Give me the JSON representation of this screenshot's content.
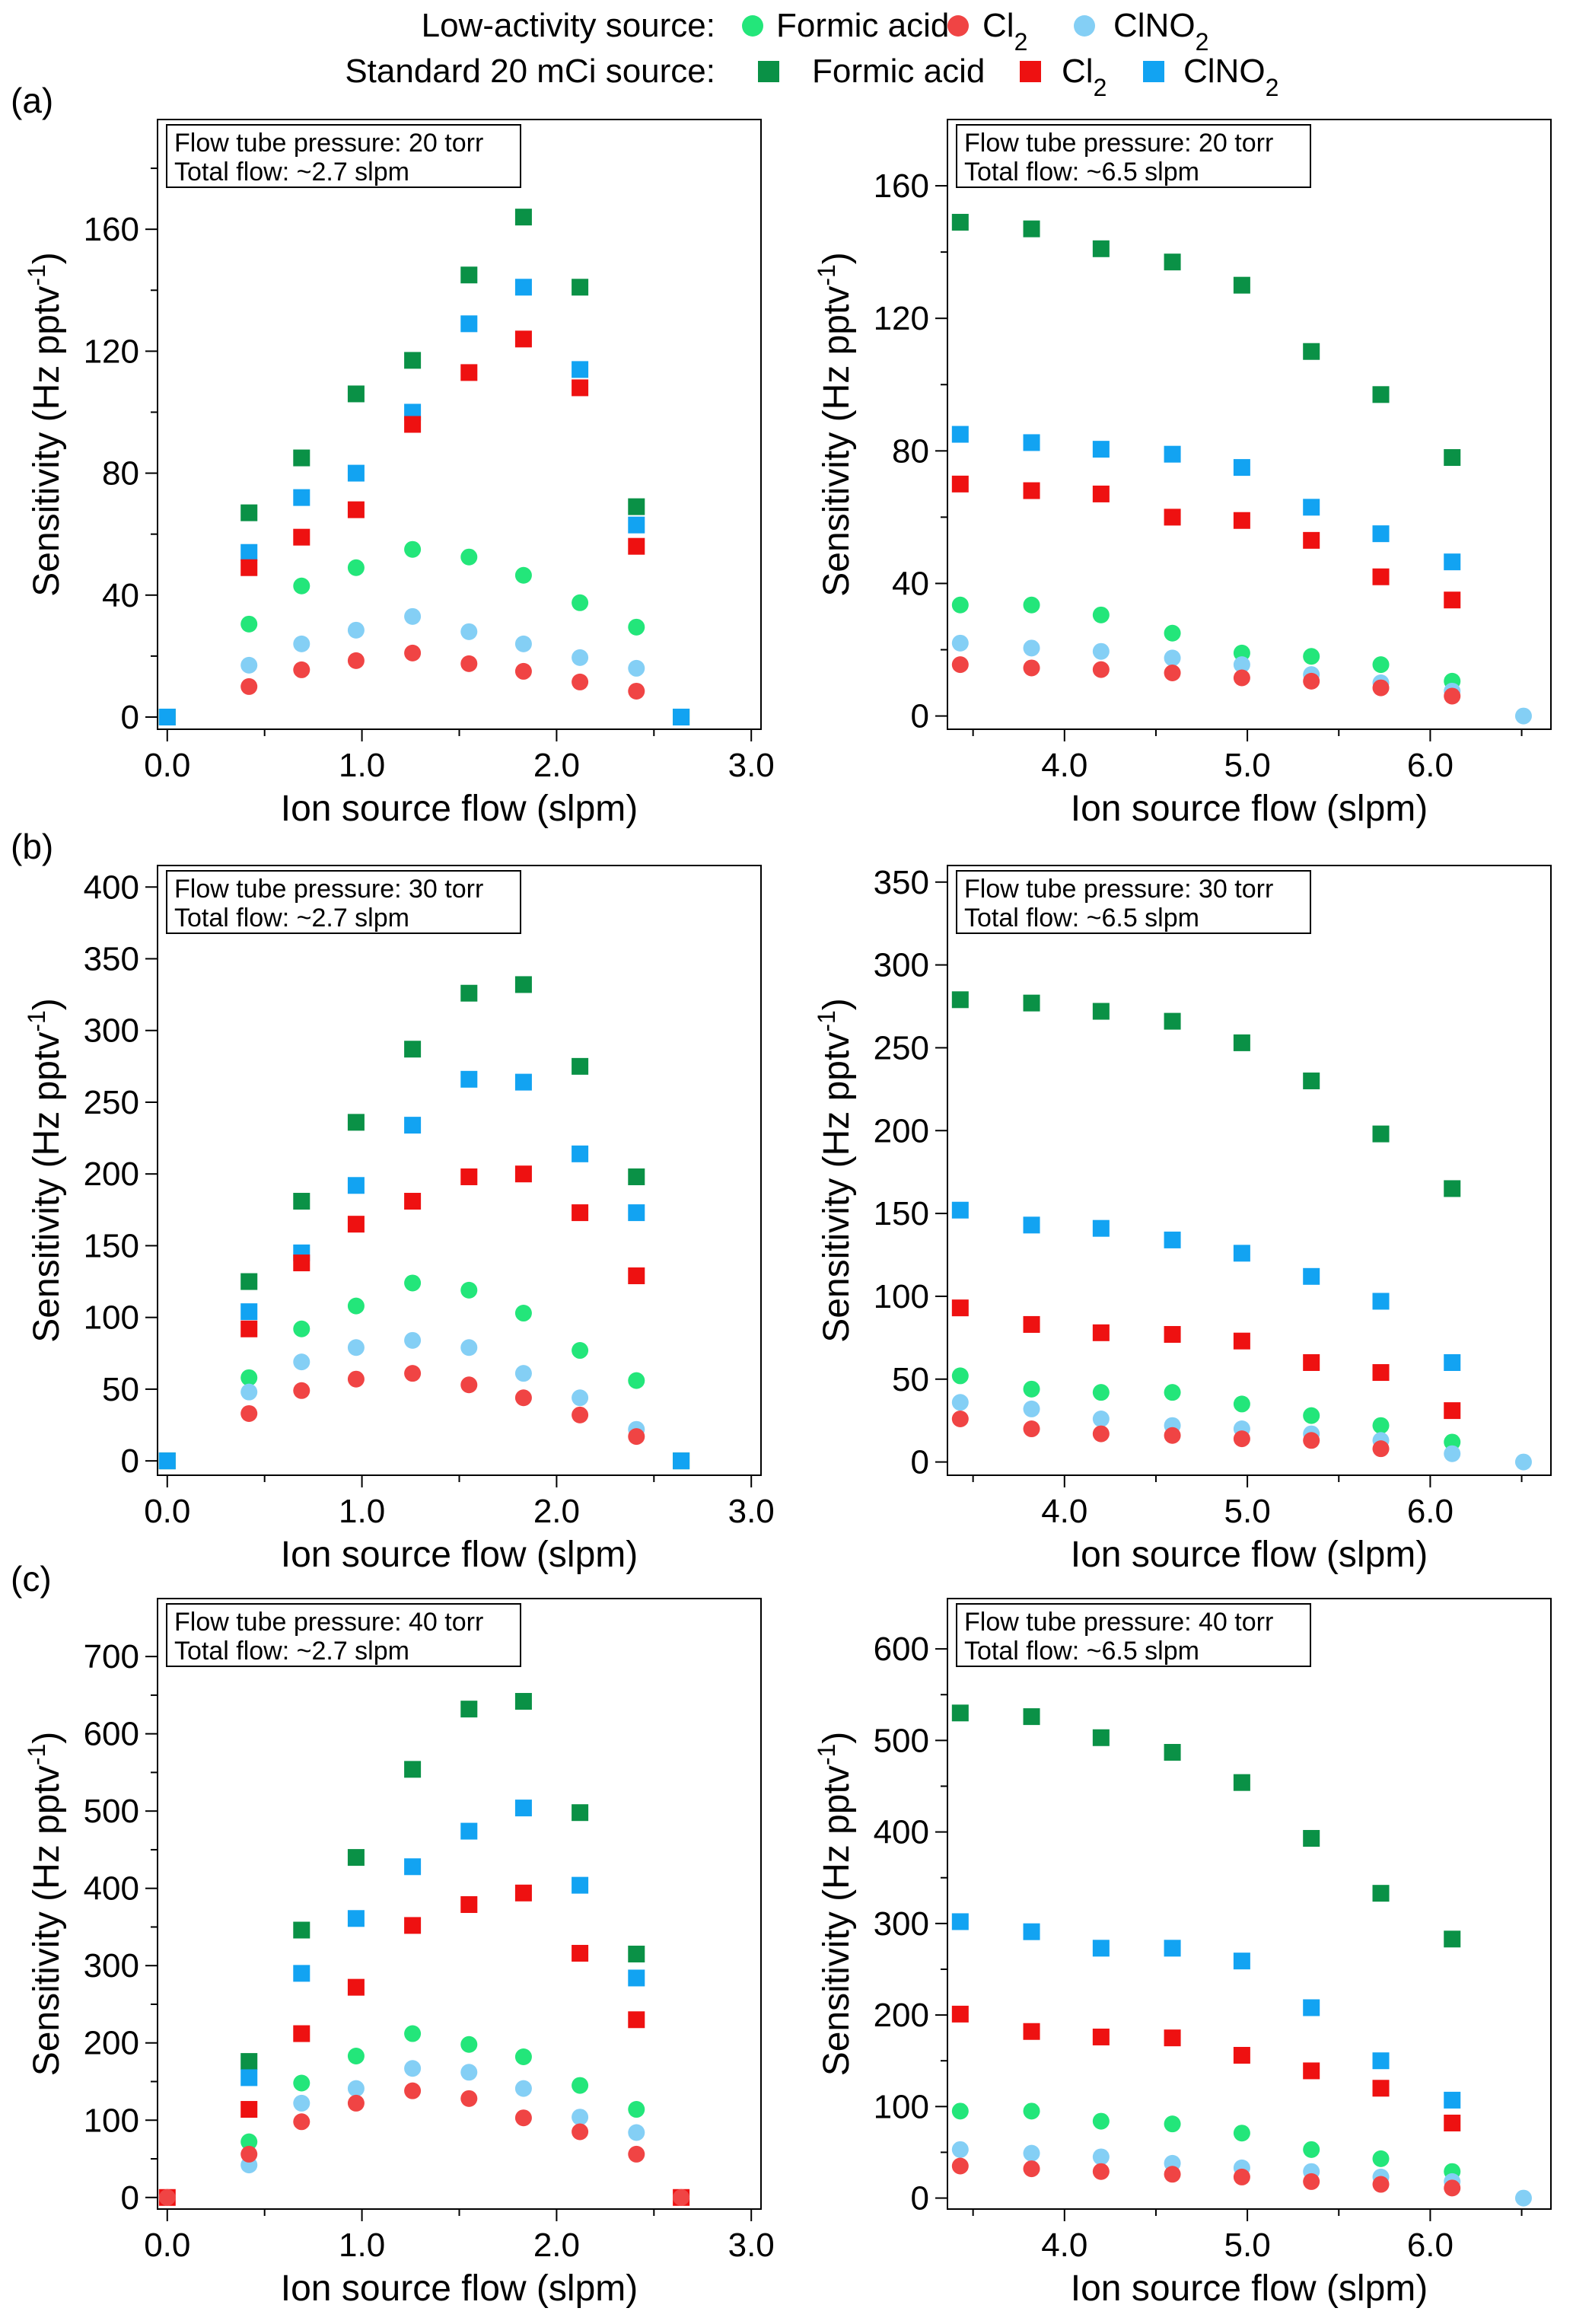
{
  "legend": {
    "low_activity_label": "Low-activity source:",
    "standard_label": "Standard 20 mCi source:",
    "entries": [
      {
        "source": "low",
        "species": "Formic acid",
        "color": "#23e67a",
        "marker": "circle"
      },
      {
        "source": "low",
        "species": "Cl2",
        "color": "#f04444",
        "marker": "circle"
      },
      {
        "source": "low",
        "species": "ClNO2",
        "color": "#84cff5",
        "marker": "circle"
      },
      {
        "source": "std",
        "species": "Formic acid",
        "color": "#0a9146",
        "marker": "square"
      },
      {
        "source": "std",
        "species": "Cl2",
        "color": "#ee1111",
        "marker": "square"
      },
      {
        "source": "std",
        "species": "ClNO2",
        "color": "#12a3f2",
        "marker": "square"
      }
    ]
  },
  "panel_labels": [
    "(a)",
    "(b)",
    "(c)"
  ],
  "chart_data": [
    {
      "type": "scatter",
      "row": "(a)",
      "side": "left",
      "info": [
        "Flow tube pressure:  20 torr",
        "Total flow: ~2.7 slpm"
      ],
      "xlabel": "Ion source flow (slpm)",
      "ylabel": "Sensitivity (Hz pptv-1)",
      "xlim": [
        -0.05,
        3.05
      ],
      "ylim": [
        -4,
        196
      ],
      "xticks": [
        0,
        1,
        2,
        3
      ],
      "xtick_labels": [
        "0.0",
        "1.0",
        "2.0",
        "3.0"
      ],
      "xminor": [
        0.5,
        1.5,
        2.5
      ],
      "yticks": [
        0,
        40,
        80,
        120,
        160
      ],
      "yminor": [
        20,
        60,
        100,
        140,
        180
      ],
      "x": [
        0.0,
        0.42,
        0.69,
        0.97,
        1.26,
        1.55,
        1.83,
        2.12,
        2.41,
        2.64
      ],
      "series": [
        {
          "name": "Low-activity Formic acid",
          "values": [
            null,
            30.5,
            43,
            49,
            55,
            52.5,
            46.5,
            37.5,
            29.5,
            null
          ]
        },
        {
          "name": "Low-activity Cl2",
          "values": [
            null,
            10,
            15.5,
            18.5,
            21,
            17.5,
            15,
            11.5,
            8.5,
            null
          ]
        },
        {
          "name": "Low-activity ClNO2",
          "values": [
            null,
            17,
            24,
            28.5,
            33,
            28,
            24,
            19.5,
            16,
            null
          ]
        },
        {
          "name": "Standard Formic acid",
          "values": [
            0,
            67,
            85,
            106,
            117,
            145,
            164,
            141,
            69,
            0
          ]
        },
        {
          "name": "Standard Cl2",
          "values": [
            null,
            49,
            59,
            68,
            96,
            113,
            124,
            108,
            56,
            null
          ]
        },
        {
          "name": "Standard ClNO2",
          "values": [
            0,
            54,
            72,
            80,
            100,
            129,
            141,
            114,
            63,
            0
          ]
        }
      ]
    },
    {
      "type": "scatter",
      "row": "(a)",
      "side": "right",
      "info": [
        "Flow tube pressure:  20 torr",
        "Total flow: ~6.5 slpm"
      ],
      "xlabel": "Ion source flow (slpm)",
      "ylabel": "Sensitivity (Hz pptv-1)",
      "xlim": [
        3.36,
        6.66
      ],
      "ylim": [
        -4,
        180
      ],
      "xticks": [
        4,
        5,
        6
      ],
      "xtick_labels": [
        "4.0",
        "5.0",
        "6.0"
      ],
      "xminor": [
        3.5,
        4.5,
        5.5,
        6.5
      ],
      "yticks": [
        0,
        40,
        80,
        120,
        160
      ],
      "yminor": [
        20,
        60,
        100,
        140
      ],
      "x": [
        3.43,
        3.82,
        4.2,
        4.59,
        4.97,
        5.35,
        5.73,
        6.12,
        6.51
      ],
      "series": [
        {
          "name": "Low-activity Formic acid",
          "values": [
            33.5,
            33.5,
            30.5,
            25,
            19,
            18,
            15.5,
            10.5,
            null
          ]
        },
        {
          "name": "Low-activity Cl2",
          "values": [
            15.5,
            14.5,
            14,
            13,
            11.5,
            10.5,
            8.5,
            6,
            null
          ]
        },
        {
          "name": "Low-activity ClNO2",
          "values": [
            22,
            20.5,
            19.5,
            17.5,
            15.5,
            12.5,
            10,
            7.5,
            0
          ]
        },
        {
          "name": "Standard Formic acid",
          "values": [
            149,
            147,
            141,
            137,
            130,
            110,
            97,
            78,
            null
          ]
        },
        {
          "name": "Standard Cl2",
          "values": [
            70,
            68,
            67,
            60,
            59,
            53,
            42,
            35,
            null
          ]
        },
        {
          "name": "Standard ClNO2",
          "values": [
            85,
            82.5,
            80.5,
            79,
            75,
            63,
            55,
            46.5,
            null
          ]
        }
      ]
    },
    {
      "type": "scatter",
      "row": "(b)",
      "side": "left",
      "info": [
        "Flow tube pressure: 30 torr",
        "Total flow: ~2.7 slpm"
      ],
      "xlabel": "Ion source flow (slpm)",
      "ylabel": "Sensitivity (Hz pptv-1)",
      "xlim": [
        -0.05,
        3.05
      ],
      "ylim": [
        -10,
        415
      ],
      "xticks": [
        0,
        1,
        2,
        3
      ],
      "xtick_labels": [
        "0.0",
        "1.0",
        "2.0",
        "3.0"
      ],
      "xminor": [
        0.5,
        1.5,
        2.5
      ],
      "yticks": [
        0,
        50,
        100,
        150,
        200,
        250,
        300,
        350,
        400
      ],
      "yminor": [],
      "x": [
        0.0,
        0.42,
        0.69,
        0.97,
        1.26,
        1.55,
        1.83,
        2.12,
        2.41,
        2.64
      ],
      "series": [
        {
          "name": "Low-activity Formic acid",
          "values": [
            null,
            58,
            92,
            108,
            124,
            119,
            103,
            77,
            56,
            null
          ]
        },
        {
          "name": "Low-activity Cl2",
          "values": [
            null,
            33,
            49,
            57,
            61,
            53,
            44,
            32,
            17,
            null
          ]
        },
        {
          "name": "Low-activity ClNO2",
          "values": [
            null,
            48,
            69,
            79,
            84,
            79,
            61,
            44,
            22,
            null
          ]
        },
        {
          "name": "Standard Formic acid",
          "values": [
            0,
            125,
            181,
            236,
            287,
            326,
            332,
            275,
            198,
            0
          ]
        },
        {
          "name": "Standard Cl2",
          "values": [
            null,
            92,
            138,
            165,
            181,
            198,
            200,
            173,
            129,
            null
          ]
        },
        {
          "name": "Standard ClNO2",
          "values": [
            0,
            104,
            145,
            192,
            234,
            266,
            264,
            214,
            173,
            0
          ]
        }
      ]
    },
    {
      "type": "scatter",
      "row": "(b)",
      "side": "right",
      "info": [
        "Flow tube pressure: 30 torr",
        "Total flow: ~6.5 slpm"
      ],
      "xlabel": "Ion source flow (slpm)",
      "ylabel": "Sensitivity (Hz pptv-1)",
      "xlim": [
        3.36,
        6.66
      ],
      "ylim": [
        -8,
        360
      ],
      "xticks": [
        4,
        5,
        6
      ],
      "xtick_labels": [
        "4.0",
        "5.0",
        "6.0"
      ],
      "xminor": [
        3.5,
        4.5,
        5.5,
        6.5
      ],
      "yticks": [
        0,
        50,
        100,
        150,
        200,
        250,
        300,
        350
      ],
      "yminor": [],
      "x": [
        3.43,
        3.82,
        4.2,
        4.59,
        4.97,
        5.35,
        5.73,
        6.12,
        6.51
      ],
      "series": [
        {
          "name": "Low-activity Formic acid",
          "values": [
            52,
            44,
            42,
            42,
            35,
            28,
            22,
            12,
            null
          ]
        },
        {
          "name": "Low-activity Cl2",
          "values": [
            26,
            20,
            17,
            16,
            14,
            13,
            8,
            null,
            null
          ]
        },
        {
          "name": "Low-activity ClNO2",
          "values": [
            36,
            32,
            26,
            22,
            20,
            17,
            13,
            5,
            0
          ]
        },
        {
          "name": "Standard Formic acid",
          "values": [
            279,
            277,
            272,
            266,
            253,
            230,
            198,
            165,
            null
          ]
        },
        {
          "name": "Standard Cl2",
          "values": [
            93,
            83,
            78,
            77,
            73,
            60,
            54,
            31,
            null
          ]
        },
        {
          "name": "Standard ClNO2",
          "values": [
            152,
            143,
            141,
            134,
            126,
            112,
            97,
            60,
            null
          ]
        }
      ]
    },
    {
      "type": "scatter",
      "row": "(c)",
      "side": "left",
      "info": [
        "Flow tube pressure:  40 torr",
        "Total flow: ~2.7 slpm"
      ],
      "xlabel": "Ion source flow (slpm)",
      "ylabel": "Sensitivity (Hz pptv-1)",
      "xlim": [
        -0.05,
        3.05
      ],
      "ylim": [
        -15,
        775
      ],
      "xticks": [
        0,
        1,
        2,
        3
      ],
      "xtick_labels": [
        "0.0",
        "1.0",
        "2.0",
        "3.0"
      ],
      "xminor": [
        0.5,
        1.5,
        2.5
      ],
      "yticks": [
        0,
        100,
        200,
        300,
        400,
        500,
        600,
        700
      ],
      "yminor": [
        50,
        150,
        250,
        350,
        450,
        550,
        650
      ],
      "x": [
        0.0,
        0.42,
        0.69,
        0.97,
        1.26,
        1.55,
        1.83,
        2.12,
        2.41,
        2.64
      ],
      "series": [
        {
          "name": "Low-activity Formic acid",
          "values": [
            null,
            72,
            148,
            183,
            212,
            198,
            182,
            145,
            114,
            null
          ]
        },
        {
          "name": "Low-activity Cl2",
          "values": [
            0,
            56,
            98,
            122,
            138,
            128,
            103,
            85,
            56,
            0
          ]
        },
        {
          "name": "Low-activity ClNO2",
          "values": [
            null,
            42,
            122,
            141,
            167,
            162,
            141,
            104,
            84,
            null
          ]
        },
        {
          "name": "Standard Formic acid",
          "values": [
            null,
            176,
            346,
            440,
            554,
            632,
            642,
            498,
            315,
            null
          ]
        },
        {
          "name": "Standard Cl2",
          "values": [
            0,
            114,
            212,
            272,
            352,
            379,
            394,
            316,
            230,
            0
          ]
        },
        {
          "name": "Standard ClNO2",
          "values": [
            null,
            155,
            290,
            361,
            428,
            474,
            504,
            404,
            284,
            null
          ]
        }
      ]
    },
    {
      "type": "scatter",
      "row": "(c)",
      "side": "right",
      "info": [
        "Flow tube pressure: 40 torr",
        "Total flow: ~6.5 slpm"
      ],
      "xlabel": "Ion source flow (slpm)",
      "ylabel": "Sensitivity (Hz pptv-1)",
      "xlim": [
        3.36,
        6.66
      ],
      "ylim": [
        -12,
        655
      ],
      "xticks": [
        4,
        5,
        6
      ],
      "xtick_labels": [
        "4.0",
        "5.0",
        "6.0"
      ],
      "xminor": [
        3.5,
        4.5,
        5.5,
        6.5
      ],
      "yticks": [
        0,
        100,
        200,
        300,
        400,
        500,
        600
      ],
      "yminor": [
        50,
        150,
        250,
        350,
        450,
        550
      ],
      "x": [
        3.43,
        3.82,
        4.2,
        4.59,
        4.97,
        5.35,
        5.73,
        6.12,
        6.51
      ],
      "series": [
        {
          "name": "Low-activity Formic acid",
          "values": [
            95,
            95,
            84,
            81,
            71,
            53,
            43,
            29,
            null
          ]
        },
        {
          "name": "Low-activity Cl2",
          "values": [
            35,
            32,
            29,
            26,
            23,
            18,
            15,
            11,
            null
          ]
        },
        {
          "name": "Low-activity ClNO2",
          "values": [
            53,
            49,
            45,
            38,
            33,
            29,
            23,
            18,
            0
          ]
        },
        {
          "name": "Standard Formic acid",
          "values": [
            530,
            526,
            503,
            487,
            454,
            393,
            333,
            283,
            null
          ]
        },
        {
          "name": "Standard Cl2",
          "values": [
            201,
            182,
            176,
            175,
            156,
            139,
            120,
            82,
            null
          ]
        },
        {
          "name": "Standard ClNO2",
          "values": [
            302,
            291,
            273,
            273,
            259,
            208,
            150,
            107,
            null
          ]
        }
      ]
    }
  ]
}
